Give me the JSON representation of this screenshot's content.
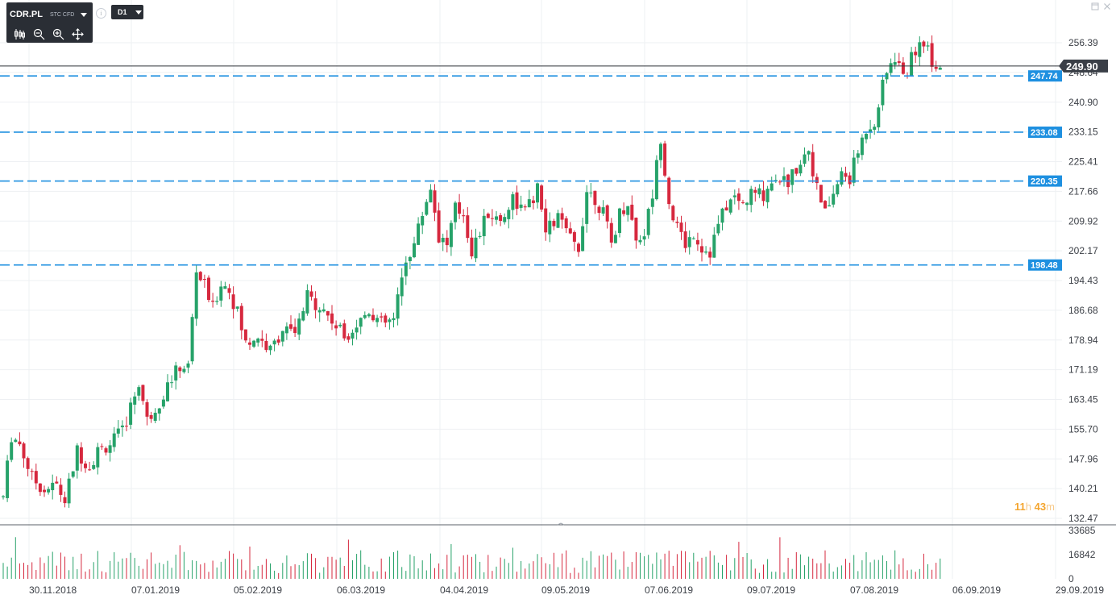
{
  "instrument": {
    "symbol": "CDR.PL",
    "type": "STC CFD",
    "timeframe": "D1"
  },
  "toolbar": {
    "tools": [
      "candles-icon",
      "zoom-out-icon",
      "zoom-in-icon",
      "move-icon"
    ]
  },
  "window_controls": [
    "minimize-icon",
    "close-icon"
  ],
  "current_price": "249.90",
  "countdown": {
    "hours": "11",
    "hours_unit": "h",
    "minutes": "43",
    "minutes_unit": "m"
  },
  "colors": {
    "up": "#26a269",
    "down": "#d6283e",
    "level": "#1e90e0",
    "price_tag": "#3a3f47",
    "countdown": "#f4a52e"
  },
  "chart_data": {
    "type": "candlestick",
    "price_axis": {
      "ticks": [
        "256.39",
        "248.64",
        "240.90",
        "233.15",
        "225.41",
        "217.66",
        "209.92",
        "202.17",
        "194.43",
        "186.68",
        "178.94",
        "171.19",
        "163.45",
        "155.70",
        "147.96",
        "140.21",
        "132.47"
      ],
      "ylim": [
        132.47,
        256.39
      ]
    },
    "volume_axis": {
      "ticks": [
        "33685",
        "16842",
        "0"
      ],
      "ylim": [
        0,
        33685
      ]
    },
    "date_ticks": [
      "30.11.2018",
      "07.01.2019",
      "05.02.2019",
      "06.03.2019",
      "04.04.2019",
      "09.05.2019",
      "07.06.2019",
      "09.07.2019",
      "07.08.2019",
      "06.09.2019",
      "29.09.2019"
    ],
    "levels": [
      {
        "label": "247.74",
        "value": 247.74
      },
      {
        "label": "233.08",
        "value": 233.08
      },
      {
        "label": "220.35",
        "value": 220.35
      },
      {
        "label": "198.48",
        "value": 198.48
      }
    ],
    "current_price": 249.9,
    "price_anchors": [
      [
        0,
        138
      ],
      [
        2,
        154
      ],
      [
        4,
        152
      ],
      [
        7,
        143
      ],
      [
        10,
        140
      ],
      [
        13,
        141
      ],
      [
        15,
        137
      ],
      [
        18,
        150
      ],
      [
        21,
        146
      ],
      [
        23,
        150
      ],
      [
        26,
        152
      ],
      [
        29,
        155
      ],
      [
        33,
        168
      ],
      [
        35,
        158
      ],
      [
        38,
        163
      ],
      [
        41,
        169
      ],
      [
        43,
        172
      ],
      [
        45,
        172
      ],
      [
        47,
        197
      ],
      [
        49,
        193
      ],
      [
        51,
        187
      ],
      [
        53,
        194
      ],
      [
        55,
        192
      ],
      [
        57,
        186
      ],
      [
        59,
        178
      ],
      [
        62,
        180
      ],
      [
        65,
        176
      ],
      [
        68,
        182
      ],
      [
        71,
        180
      ],
      [
        74,
        190
      ],
      [
        77,
        188
      ],
      [
        80,
        184
      ],
      [
        83,
        180
      ],
      [
        86,
        183
      ],
      [
        89,
        187
      ],
      [
        92,
        183
      ],
      [
        95,
        184
      ],
      [
        98,
        200
      ],
      [
        100,
        204
      ],
      [
        102,
        212
      ],
      [
        104,
        219
      ],
      [
        106,
        206
      ],
      [
        108,
        204
      ],
      [
        110,
        213
      ],
      [
        112,
        212
      ],
      [
        114,
        202
      ],
      [
        116,
        207
      ],
      [
        118,
        212
      ],
      [
        121,
        210
      ],
      [
        124,
        216
      ],
      [
        127,
        212
      ],
      [
        130,
        218
      ],
      [
        132,
        207
      ],
      [
        135,
        211
      ],
      [
        138,
        205
      ],
      [
        140,
        203
      ],
      [
        142,
        218
      ],
      [
        144,
        216
      ],
      [
        146,
        212
      ],
      [
        148,
        204
      ],
      [
        150,
        212
      ],
      [
        152,
        215
      ],
      [
        154,
        205
      ],
      [
        156,
        207
      ],
      [
        158,
        217
      ],
      [
        160,
        232
      ],
      [
        162,
        215
      ],
      [
        164,
        208
      ],
      [
        166,
        204
      ],
      [
        168,
        207
      ],
      [
        170,
        203
      ],
      [
        172,
        202
      ],
      [
        174,
        209
      ],
      [
        176,
        214
      ],
      [
        178,
        216
      ],
      [
        180,
        214
      ],
      [
        182,
        217
      ],
      [
        185,
        217
      ],
      [
        188,
        222
      ],
      [
        191,
        220
      ],
      [
        194,
        226
      ],
      [
        196,
        229
      ],
      [
        198,
        218
      ],
      [
        200,
        212
      ],
      [
        202,
        217
      ],
      [
        204,
        222
      ],
      [
        206,
        221
      ],
      [
        208,
        228
      ],
      [
        210,
        234
      ],
      [
        212,
        236
      ],
      [
        214,
        245
      ],
      [
        216,
        252
      ],
      [
        218,
        250
      ],
      [
        220,
        249
      ],
      [
        222,
        255
      ],
      [
        224,
        257
      ],
      [
        226,
        252
      ],
      [
        228,
        250
      ]
    ]
  }
}
